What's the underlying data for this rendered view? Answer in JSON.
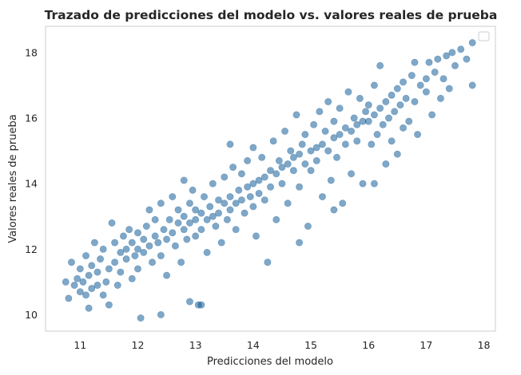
{
  "chart_data": {
    "type": "scatter",
    "title": "Trazado de predicciones del modelo vs. valores reales de prueba",
    "xlabel": "Predicciones del modelo",
    "ylabel": "Valores reales de prueba",
    "xlim": [
      10.4,
      18.2
    ],
    "ylim": [
      9.5,
      18.8
    ],
    "xticks": [
      "11",
      "12",
      "13",
      "14",
      "15",
      "16",
      "17",
      "18"
    ],
    "yticks": [
      "10",
      "12",
      "14",
      "16",
      "18"
    ],
    "grid": false,
    "legend": {
      "placement": "top-right",
      "entries": []
    },
    "point_color": "#00508f",
    "point_opacity": 0.5,
    "series": [
      {
        "points": [
          [
            10.75,
            11.0
          ],
          [
            10.8,
            10.5
          ],
          [
            10.85,
            11.6
          ],
          [
            10.9,
            10.9
          ],
          [
            10.95,
            11.1
          ],
          [
            11.0,
            10.7
          ],
          [
            11.0,
            11.4
          ],
          [
            11.05,
            11.0
          ],
          [
            11.1,
            10.6
          ],
          [
            11.1,
            11.8
          ],
          [
            11.15,
            11.2
          ],
          [
            11.15,
            10.2
          ],
          [
            11.2,
            10.8
          ],
          [
            11.2,
            11.5
          ],
          [
            11.25,
            12.2
          ],
          [
            11.3,
            10.9
          ],
          [
            11.3,
            11.3
          ],
          [
            11.35,
            11.7
          ],
          [
            11.4,
            10.6
          ],
          [
            11.4,
            12.0
          ],
          [
            11.45,
            11.0
          ],
          [
            11.5,
            11.4
          ],
          [
            11.5,
            10.3
          ],
          [
            11.55,
            12.8
          ],
          [
            11.6,
            11.6
          ],
          [
            11.6,
            12.2
          ],
          [
            11.65,
            10.9
          ],
          [
            11.7,
            11.9
          ],
          [
            11.7,
            11.3
          ],
          [
            11.75,
            12.4
          ],
          [
            11.8,
            12.0
          ],
          [
            11.8,
            11.7
          ],
          [
            11.85,
            12.6
          ],
          [
            11.9,
            11.1
          ],
          [
            11.9,
            12.2
          ],
          [
            11.95,
            11.8
          ],
          [
            12.0,
            12.0
          ],
          [
            12.0,
            12.5
          ],
          [
            12.0,
            11.4
          ],
          [
            12.05,
            9.9
          ],
          [
            12.1,
            12.3
          ],
          [
            12.1,
            11.9
          ],
          [
            12.15,
            12.7
          ],
          [
            12.2,
            12.1
          ],
          [
            12.2,
            13.2
          ],
          [
            12.25,
            11.6
          ],
          [
            12.3,
            12.4
          ],
          [
            12.3,
            12.9
          ],
          [
            12.35,
            12.2
          ],
          [
            12.4,
            11.8
          ],
          [
            12.4,
            13.4
          ],
          [
            12.45,
            12.6
          ],
          [
            12.5,
            12.3
          ],
          [
            12.5,
            11.2
          ],
          [
            12.55,
            12.9
          ],
          [
            12.6,
            12.5
          ],
          [
            12.6,
            13.6
          ],
          [
            12.65,
            12.1
          ],
          [
            12.7,
            12.8
          ],
          [
            12.7,
            13.2
          ],
          [
            12.75,
            11.6
          ],
          [
            12.8,
            12.6
          ],
          [
            12.8,
            13.0
          ],
          [
            12.85,
            12.3
          ],
          [
            12.9,
            13.4
          ],
          [
            12.9,
            12.8
          ],
          [
            12.95,
            13.8
          ],
          [
            13.0,
            12.9
          ],
          [
            13.0,
            12.4
          ],
          [
            13.0,
            13.2
          ],
          [
            13.05,
            10.3
          ],
          [
            13.1,
            13.1
          ],
          [
            13.1,
            12.6
          ],
          [
            13.15,
            13.6
          ],
          [
            13.2,
            12.9
          ],
          [
            13.2,
            11.9
          ],
          [
            13.25,
            13.3
          ],
          [
            13.3,
            13.0
          ],
          [
            13.3,
            14.0
          ],
          [
            13.35,
            12.7
          ],
          [
            13.4,
            13.5
          ],
          [
            13.4,
            13.1
          ],
          [
            13.45,
            12.2
          ],
          [
            13.5,
            13.4
          ],
          [
            13.5,
            14.2
          ],
          [
            13.55,
            12.9
          ],
          [
            13.6,
            13.6
          ],
          [
            13.6,
            13.2
          ],
          [
            13.65,
            14.5
          ],
          [
            13.7,
            13.4
          ],
          [
            13.7,
            12.6
          ],
          [
            13.75,
            13.8
          ],
          [
            13.8,
            13.5
          ],
          [
            13.8,
            14.3
          ],
          [
            13.85,
            13.1
          ],
          [
            13.9,
            13.9
          ],
          [
            13.9,
            14.7
          ],
          [
            13.95,
            13.6
          ],
          [
            14.0,
            14.0
          ],
          [
            14.0,
            13.3
          ],
          [
            14.0,
            15.1
          ],
          [
            14.05,
            12.4
          ],
          [
            14.1,
            14.1
          ],
          [
            14.1,
            13.7
          ],
          [
            14.15,
            14.8
          ],
          [
            14.2,
            14.2
          ],
          [
            14.2,
            13.5
          ],
          [
            14.25,
            11.6
          ],
          [
            14.3,
            14.4
          ],
          [
            14.3,
            13.9
          ],
          [
            14.35,
            15.3
          ],
          [
            14.4,
            14.3
          ],
          [
            14.4,
            12.9
          ],
          [
            14.45,
            14.7
          ],
          [
            14.5,
            14.5
          ],
          [
            14.5,
            14.0
          ],
          [
            14.55,
            15.6
          ],
          [
            14.6,
            14.6
          ],
          [
            14.6,
            13.4
          ],
          [
            14.65,
            15.0
          ],
          [
            14.7,
            14.4
          ],
          [
            14.7,
            14.8
          ],
          [
            14.75,
            16.1
          ],
          [
            14.8,
            14.9
          ],
          [
            14.8,
            13.9
          ],
          [
            14.85,
            15.2
          ],
          [
            14.9,
            14.6
          ],
          [
            14.9,
            15.5
          ],
          [
            14.95,
            12.7
          ],
          [
            15.0,
            15.0
          ],
          [
            15.0,
            14.4
          ],
          [
            15.05,
            15.8
          ],
          [
            15.1,
            15.1
          ],
          [
            15.1,
            14.7
          ],
          [
            15.15,
            16.2
          ],
          [
            15.2,
            15.2
          ],
          [
            15.2,
            13.6
          ],
          [
            15.25,
            15.6
          ],
          [
            15.3,
            15.0
          ],
          [
            15.3,
            16.5
          ],
          [
            15.35,
            14.1
          ],
          [
            15.4,
            15.4
          ],
          [
            15.4,
            15.9
          ],
          [
            15.45,
            14.8
          ],
          [
            15.5,
            15.5
          ],
          [
            15.5,
            16.3
          ],
          [
            15.55,
            13.4
          ],
          [
            15.6,
            15.7
          ],
          [
            15.6,
            15.2
          ],
          [
            15.65,
            16.8
          ],
          [
            15.7,
            15.6
          ],
          [
            15.7,
            14.3
          ],
          [
            15.75,
            16.0
          ],
          [
            15.8,
            15.8
          ],
          [
            15.8,
            15.3
          ],
          [
            15.85,
            16.6
          ],
          [
            15.9,
            15.9
          ],
          [
            15.9,
            14.0
          ],
          [
            15.95,
            16.2
          ],
          [
            16.0,
            15.9
          ],
          [
            16.0,
            16.4
          ],
          [
            16.05,
            15.2
          ],
          [
            16.1,
            16.1
          ],
          [
            16.1,
            17.0
          ],
          [
            16.15,
            15.5
          ],
          [
            16.2,
            16.3
          ],
          [
            16.2,
            17.6
          ],
          [
            16.25,
            15.8
          ],
          [
            16.3,
            16.5
          ],
          [
            16.3,
            14.6
          ],
          [
            16.35,
            16.0
          ],
          [
            16.4,
            16.7
          ],
          [
            16.4,
            15.3
          ],
          [
            16.45,
            16.2
          ],
          [
            16.5,
            16.9
          ],
          [
            16.5,
            14.9
          ],
          [
            16.55,
            16.4
          ],
          [
            16.6,
            15.7
          ],
          [
            16.6,
            17.1
          ],
          [
            16.65,
            16.6
          ],
          [
            16.7,
            15.9
          ],
          [
            16.75,
            17.3
          ],
          [
            16.8,
            16.5
          ],
          [
            16.8,
            17.7
          ],
          [
            16.85,
            15.5
          ],
          [
            16.9,
            17.0
          ],
          [
            17.0,
            17.2
          ],
          [
            17.0,
            16.8
          ],
          [
            17.05,
            17.7
          ],
          [
            17.1,
            16.1
          ],
          [
            17.15,
            17.4
          ],
          [
            17.2,
            17.8
          ],
          [
            17.25,
            16.6
          ],
          [
            17.3,
            17.2
          ],
          [
            17.35,
            17.9
          ],
          [
            17.4,
            16.9
          ],
          [
            17.45,
            18.0
          ],
          [
            17.5,
            17.6
          ],
          [
            17.6,
            18.1
          ],
          [
            17.7,
            17.8
          ],
          [
            17.8,
            17.0
          ],
          [
            17.8,
            18.3
          ],
          [
            12.4,
            10.0
          ],
          [
            12.9,
            10.4
          ],
          [
            13.1,
            10.3
          ],
          [
            14.8,
            12.2
          ],
          [
            15.4,
            13.2
          ],
          [
            16.1,
            14.0
          ],
          [
            13.6,
            15.2
          ],
          [
            12.8,
            14.1
          ]
        ]
      }
    ]
  }
}
